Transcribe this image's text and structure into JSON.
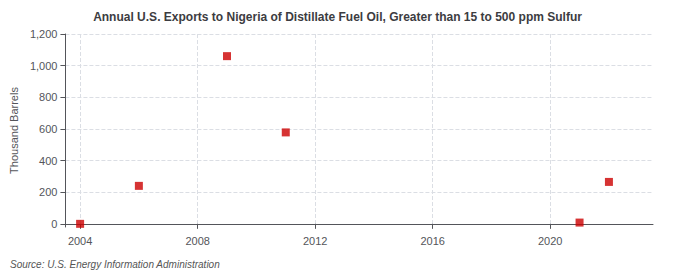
{
  "chart_data": {
    "type": "scatter",
    "title": "Annual U.S. Exports to Nigeria of Distillate Fuel Oil, Greater than 15 to 500 ppm Sulfur",
    "ylabel": "Thousand Barrels",
    "source": "Source: U.S. Energy Information Administration",
    "x": [
      2004,
      2006,
      2009,
      2011,
      2021,
      2022
    ],
    "values": [
      0,
      240,
      1060,
      578,
      8,
      265
    ],
    "color": "#cc0000",
    "marker": "square",
    "xlim": [
      2003.5,
      2023.5
    ],
    "ylim": [
      -20,
      1200
    ],
    "xticks": [
      2004,
      2008,
      2012,
      2016,
      2020
    ],
    "yticks": [
      0,
      200,
      400,
      600,
      800,
      {
        "value": 1000,
        "label": "1,000"
      },
      {
        "value": 1200,
        "label": "1,200"
      }
    ],
    "grid": true
  }
}
